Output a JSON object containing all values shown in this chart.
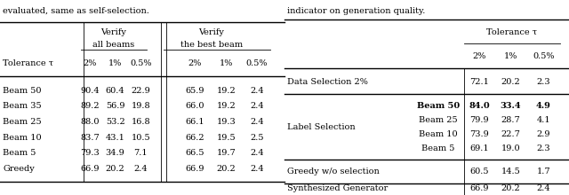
{
  "left_title": "evaluated, same as self-selection.",
  "right_title": "indicator on generation quality.",
  "left": {
    "rows": [
      [
        "Beam 50",
        "90.4",
        "60.4",
        "22.9",
        "65.9",
        "19.2",
        "2.4"
      ],
      [
        "Beam 35",
        "89.2",
        "56.9",
        "19.8",
        "66.0",
        "19.2",
        "2.4"
      ],
      [
        "Beam 25",
        "88.0",
        "53.2",
        "16.8",
        "66.1",
        "19.3",
        "2.4"
      ],
      [
        "Beam 10",
        "83.7",
        "43.1",
        "10.5",
        "66.2",
        "19.5",
        "2.5"
      ],
      [
        "Beam 5",
        "79.3",
        "34.9",
        "7.1",
        "66.5",
        "19.7",
        "2.4"
      ],
      [
        "Greedy",
        "66.9",
        "20.2",
        "2.4",
        "66.9",
        "20.2",
        "2.4"
      ]
    ]
  },
  "right": {
    "data_sel": [
      "72.1",
      "20.2",
      "2.3"
    ],
    "label_beams": [
      [
        "Beam 50",
        "84.0",
        "33.4",
        "4.9",
        true
      ],
      [
        "Beam 25",
        "79.9",
        "28.7",
        "4.1",
        false
      ],
      [
        "Beam 10",
        "73.9",
        "22.7",
        "2.9",
        false
      ],
      [
        "Beam 5",
        "69.1",
        "19.0",
        "2.3",
        false
      ]
    ],
    "greedy": [
      "60.5",
      "14.5",
      "1.7"
    ],
    "synth": [
      "66.9",
      "20.2",
      "2.4"
    ]
  },
  "fontsize": 7.0,
  "lw_thick": 1.0,
  "lw_thin": 0.6
}
